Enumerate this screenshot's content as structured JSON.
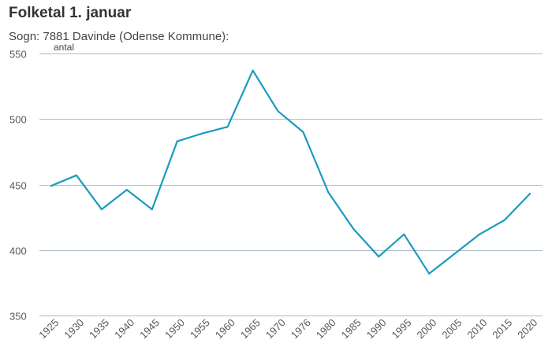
{
  "header": {
    "title": "Folketal 1. januar",
    "subtitle": "Sogn: 7881 Davinde (Odense Kommune):",
    "y_unit": "antal"
  },
  "colors": {
    "line": "#1a9bbf",
    "grid": "#aebdc8",
    "tick_text": "#595959"
  },
  "chart_data": {
    "type": "line",
    "title": "Folketal 1. januar",
    "subtitle": "Sogn: 7881 Davinde (Odense Kommune):",
    "ylabel": "antal",
    "xlabel": "",
    "ylim": [
      350,
      550
    ],
    "yticks": [
      350,
      400,
      450,
      500,
      550
    ],
    "grid": true,
    "legend": "none",
    "categories": [
      "1925",
      "1930",
      "1935",
      "1940",
      "1945",
      "1950",
      "1955",
      "1960",
      "1965",
      "1970",
      "1976",
      "1980",
      "1985",
      "1990",
      "1995",
      "2000",
      "2005",
      "2010",
      "2015",
      "2020"
    ],
    "series": [
      {
        "values": [
          449,
          457,
          431,
          446,
          431,
          483,
          489,
          494,
          537,
          506,
          490,
          444,
          416,
          395,
          412,
          382,
          397,
          412,
          423,
          443
        ]
      }
    ]
  }
}
